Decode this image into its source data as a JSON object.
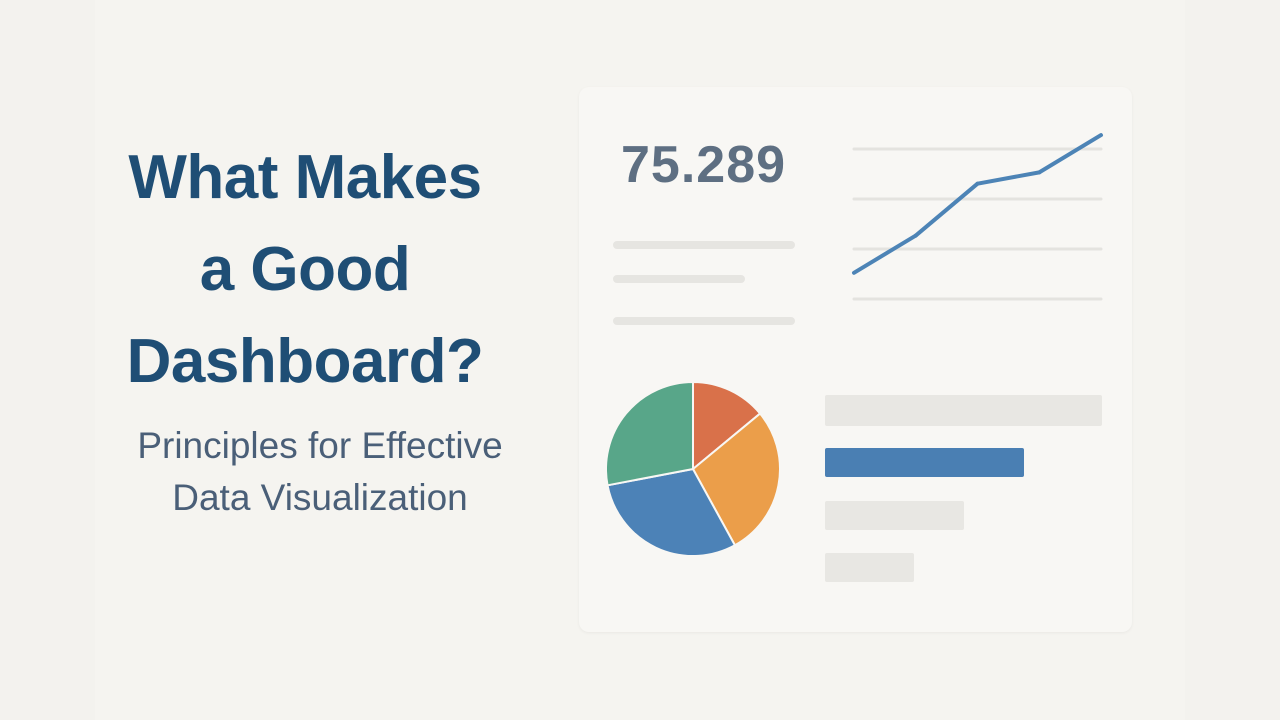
{
  "title_lines": [
    "What Makes",
    "a Good",
    "Dashboard?"
  ],
  "subtitle_lines": [
    "Principles for Effective",
    "Data Visualization"
  ],
  "kpi_value": "75.289",
  "colors": {
    "title": "#1f4e75",
    "subtitle": "#4a5f78",
    "kpi": "#5e6f82",
    "line": "#4d84b6",
    "pie": [
      "#d9714a",
      "#eb9e4a",
      "#4c82b7",
      "#58a689"
    ],
    "bar_highlight": "#4a7fb3",
    "bar_muted": "#e8e7e3"
  },
  "chart_data": [
    {
      "type": "line",
      "x": [
        1,
        2,
        3,
        4,
        5
      ],
      "y": [
        10,
        33,
        65,
        72,
        95
      ],
      "ylim": [
        0,
        100
      ],
      "grid": true
    },
    {
      "type": "pie",
      "values": [
        14,
        28,
        30,
        28
      ],
      "colors": [
        "#d9714a",
        "#eb9e4a",
        "#4c82b7",
        "#58a689"
      ]
    },
    {
      "type": "bar",
      "orientation": "horizontal",
      "values": [
        100,
        72,
        50,
        32
      ],
      "highlight_index": 1
    }
  ]
}
